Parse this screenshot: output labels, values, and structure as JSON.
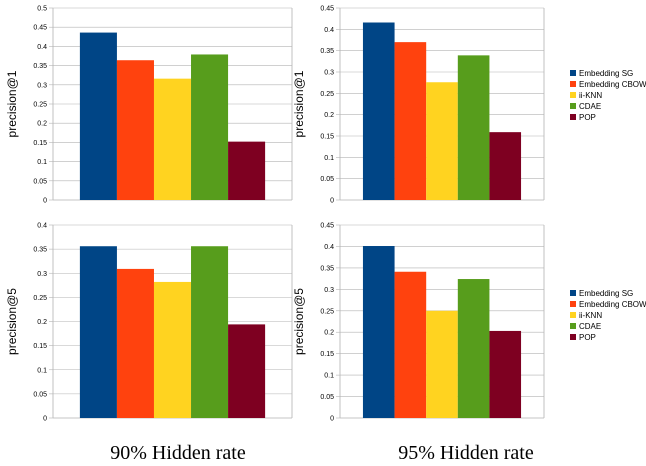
{
  "series_names": [
    "Embedding SG",
    "Embedding CBOW",
    "ii-KNN",
    "CDAE",
    "POP"
  ],
  "series_colors": [
    "#004586",
    "#ff420e",
    "#ffd320",
    "#579d1c",
    "#7e0021"
  ],
  "column_labels": [
    "90% Hidden rate",
    "95% Hidden rate"
  ],
  "chart_data": [
    {
      "type": "bar",
      "ylabel": "precision@1",
      "ylim": [
        0,
        0.5
      ],
      "yticks": [
        "0",
        "0.05",
        "0.1",
        "0.15",
        "0.2",
        "0.25",
        "0.3",
        "0.35",
        "0.4",
        "0.45",
        "0.5"
      ],
      "series": [
        {
          "name": "Embedding SG",
          "values": [
            0.436
          ]
        },
        {
          "name": "Embedding CBOW",
          "values": [
            0.364
          ]
        },
        {
          "name": "ii-KNN",
          "values": [
            0.316
          ]
        },
        {
          "name": "CDAE",
          "values": [
            0.379
          ]
        },
        {
          "name": "POP",
          "values": [
            0.152
          ]
        }
      ],
      "legend": "none"
    },
    {
      "type": "bar",
      "ylabel": "precision@1",
      "ylim": [
        0,
        0.45
      ],
      "yticks": [
        "0",
        "0.05",
        "0.1",
        "0.15",
        "0.2",
        "0.25",
        "0.3",
        "0.35",
        "0.4",
        "0.45"
      ],
      "series": [
        {
          "name": "Embedding SG",
          "values": [
            0.416
          ]
        },
        {
          "name": "Embedding CBOW",
          "values": [
            0.37
          ]
        },
        {
          "name": "ii-KNN",
          "values": [
            0.276
          ]
        },
        {
          "name": "CDAE",
          "values": [
            0.339
          ]
        },
        {
          "name": "POP",
          "values": [
            0.159
          ]
        }
      ],
      "legend": "right"
    },
    {
      "type": "bar",
      "ylabel": "precision@5",
      "ylim": [
        0,
        0.4
      ],
      "yticks": [
        "0",
        "0.05",
        "0.1",
        "0.15",
        "0.2",
        "0.25",
        "0.3",
        "0.35",
        "0.4"
      ],
      "series": [
        {
          "name": "Embedding SG",
          "values": [
            0.356
          ]
        },
        {
          "name": "Embedding CBOW",
          "values": [
            0.309
          ]
        },
        {
          "name": "ii-KNN",
          "values": [
            0.282
          ]
        },
        {
          "name": "CDAE",
          "values": [
            0.356
          ]
        },
        {
          "name": "POP",
          "values": [
            0.194
          ]
        }
      ],
      "legend": "none"
    },
    {
      "type": "bar",
      "ylabel": "precision@5",
      "ylim": [
        0,
        0.45
      ],
      "yticks": [
        "0",
        "0.05",
        "0.1",
        "0.15",
        "0.2",
        "0.25",
        "0.3",
        "0.35",
        "0.4",
        "0.45"
      ],
      "series": [
        {
          "name": "Embedding SG",
          "values": [
            0.401
          ]
        },
        {
          "name": "Embedding CBOW",
          "values": [
            0.341
          ]
        },
        {
          "name": "ii-KNN",
          "values": [
            0.25
          ]
        },
        {
          "name": "CDAE",
          "values": [
            0.324
          ]
        },
        {
          "name": "POP",
          "values": [
            0.203
          ]
        }
      ],
      "legend": "right"
    }
  ]
}
